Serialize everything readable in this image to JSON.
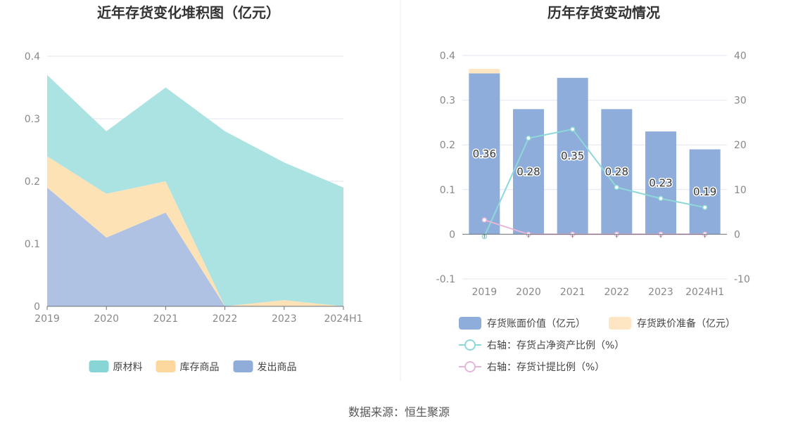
{
  "chart_data": [
    {
      "type": "area",
      "title": "近年存货变化堆积图（亿元）",
      "x": [
        "2019",
        "2020",
        "2021",
        "2022",
        "2023",
        "2024H1"
      ],
      "ylim": [
        0,
        0.4
      ],
      "yticks": [
        "0",
        "0.1",
        "0.2",
        "0.3",
        "0.4"
      ],
      "yticks_values": [
        0,
        0.1,
        0.2,
        0.3,
        0.4
      ],
      "stacked": true,
      "grid": true,
      "legend": "bottom",
      "series": [
        {
          "name": "发出商品",
          "values": [
            0.19,
            0.11,
            0.15,
            0.0,
            0.0,
            0.0
          ],
          "color": "#8fadd8",
          "fill": "#afc2e4"
        },
        {
          "name": "库存商品",
          "values": [
            0.05,
            0.07,
            0.05,
            0.0,
            0.01,
            0.0
          ],
          "color": "#ffd8a0",
          "fill": "#fde2b6"
        },
        {
          "name": "原材料",
          "values": [
            0.13,
            0.1,
            0.15,
            0.28,
            0.22,
            0.19
          ],
          "color": "#87d5d5",
          "fill": "#abe2e2"
        }
      ],
      "legend_order": [
        "原材料",
        "库存商品",
        "发出商品"
      ],
      "legend_colors": [
        "#87d5d5",
        "#fdd89e",
        "#8fadd8"
      ]
    },
    {
      "type": "bar",
      "title": "历年存货变动情况",
      "categories": [
        "2019",
        "2020",
        "2021",
        "2022",
        "2023",
        "2024H1"
      ],
      "ylim": [
        -0.1,
        0.4
      ],
      "yticks": [
        "-0.1",
        "0",
        "0.1",
        "0.2",
        "0.3",
        "0.4"
      ],
      "yticks_values": [
        -0.1,
        0,
        0.1,
        0.2,
        0.3,
        0.4
      ],
      "y2lim": [
        -10,
        40
      ],
      "y2ticks": [
        "-10",
        "0",
        "10",
        "20",
        "30",
        "40"
      ],
      "y2ticks_values": [
        -10,
        0,
        10,
        20,
        30,
        40
      ],
      "grid": true,
      "legend": "bottom",
      "bars": [
        {
          "name": "存货账面价值（亿元）",
          "values": [
            0.36,
            0.28,
            0.35,
            0.28,
            0.23,
            0.19
          ],
          "labels": [
            "0.36",
            "0.28",
            "0.35",
            "0.28",
            "0.23",
            "0.19"
          ],
          "color": "#8eadda"
        },
        {
          "name": "存货跌价准备（亿元）",
          "values": [
            0.01,
            0,
            0,
            0,
            0,
            0
          ],
          "color": "#ffe6c2"
        }
      ],
      "lines": [
        {
          "name": "右轴：存货占净资产比例（%）",
          "values": [
            -0.5,
            21.5,
            23.5,
            10.5,
            8,
            6
          ],
          "color": "#8fd8d8"
        },
        {
          "name": "右轴：存货计提比例（%）",
          "values": [
            3.2,
            0,
            0,
            0,
            0,
            0
          ],
          "color": "#e8b6d8"
        }
      ]
    }
  ],
  "footer": {
    "source": "数据来源：恒生聚源"
  }
}
